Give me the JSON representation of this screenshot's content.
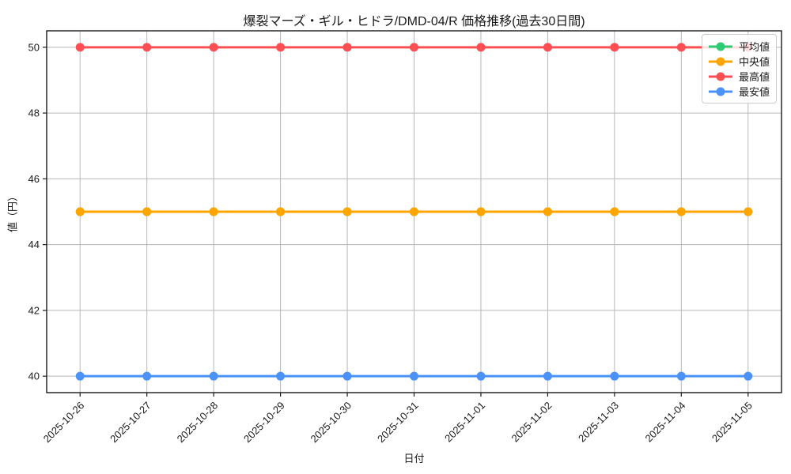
{
  "chart_data": {
    "type": "line",
    "title": "爆裂マーズ・ギル・ヒドラ/DMD-04/R 価格推移(過去30日間)",
    "xlabel": "日付",
    "ylabel": "値（円）",
    "x": [
      "2025-10-26",
      "2025-10-27",
      "2025-10-28",
      "2025-10-29",
      "2025-10-30",
      "2025-10-31",
      "2025-11-01",
      "2025-11-02",
      "2025-11-03",
      "2025-11-04",
      "2025-11-05"
    ],
    "series": [
      {
        "name": "平均値",
        "color": "#2dcb73",
        "values": [
          45,
          45,
          45,
          45,
          45,
          45,
          45,
          45,
          45,
          45,
          45
        ]
      },
      {
        "name": "中央値",
        "color": "#ffa502",
        "values": [
          45,
          45,
          45,
          45,
          45,
          45,
          45,
          45,
          45,
          45,
          45
        ]
      },
      {
        "name": "最高値",
        "color": "#fc4f54",
        "values": [
          50,
          50,
          50,
          50,
          50,
          50,
          50,
          50,
          50,
          50,
          50
        ]
      },
      {
        "name": "最安値",
        "color": "#4a92f7",
        "values": [
          40,
          40,
          40,
          40,
          40,
          40,
          40,
          40,
          40,
          40,
          40
        ]
      }
    ],
    "yticks": [
      40,
      42,
      44,
      46,
      48,
      50
    ],
    "ylim": [
      39.5,
      50.5
    ],
    "grid": true,
    "legend_position": "upper-right",
    "x_tick_rotation": 45,
    "note": "平均値 (green) series is fully overlapped by 中央値 (orange) at value 45"
  },
  "style_colors": {
    "grid": "#b8b8b8",
    "spine": "#1a1a1a",
    "text": "#1a1a1a",
    "background": "#ffffff"
  }
}
